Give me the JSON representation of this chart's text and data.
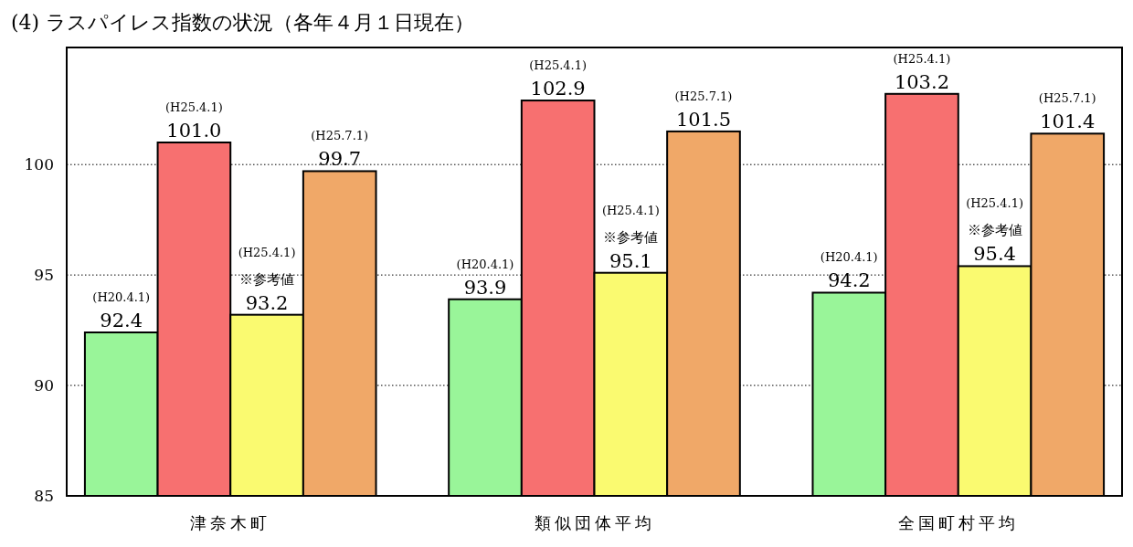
{
  "chart_data": {
    "type": "bar",
    "title": "(4) ラスパイレス指数の状況（各年４月１日現在）",
    "categories": [
      "津奈木町",
      "類似団体平均",
      "全国町村平均"
    ],
    "series": [
      {
        "color": "#99f599",
        "values": [
          92.4,
          93.9,
          94.2
        ],
        "value_labels": [
          "92.4",
          "93.9",
          "94.2"
        ]
      },
      {
        "color": "#f77070",
        "values": [
          101.0,
          102.9,
          103.2
        ],
        "value_labels": [
          "101.0",
          "102.9",
          "103.2"
        ]
      },
      {
        "color": "#fafa70",
        "values": [
          93.2,
          95.1,
          95.4
        ],
        "value_labels": [
          "93.2",
          "95.1",
          "95.4"
        ]
      },
      {
        "color": "#f0a868",
        "values": [
          99.7,
          101.5,
          101.4
        ],
        "value_labels": [
          "99.7",
          "101.5",
          "101.4"
        ]
      }
    ],
    "ylim": [
      85,
      105.3
    ],
    "yticks": [
      85,
      90,
      95,
      100
    ],
    "grid": "y",
    "annotations": [
      "(H20.4.1)",
      "(H25.4.1)",
      "※参考値",
      "(H25.4.1)",
      "(H25.7.1)",
      "(H20.4.1)",
      "(H25.4.1)",
      "※参考値",
      "(H25.4.1)",
      "(H25.7.1)",
      "(H20.4.1)",
      "(H25.4.1)",
      "※参考値",
      "(H25.4.1)",
      "(H25.7.1)"
    ]
  }
}
